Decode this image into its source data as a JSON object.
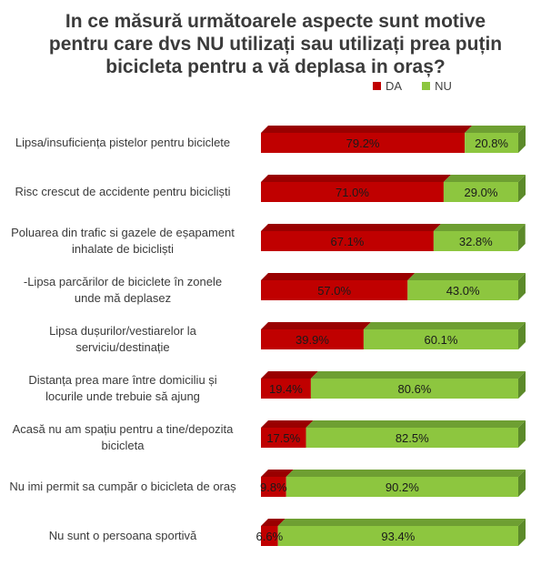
{
  "title_lines": [
    "In ce măsură următoarele aspecte sunt motive",
    "pentru care dvs NU utilizați sau utilizați prea puțin",
    "bicicleta pentru a vă deplasa in oraș?"
  ],
  "colors": {
    "da": "#c00000",
    "nu": "#8dc63f",
    "da_side": "#7a0000",
    "nu_side": "#5c8a2a",
    "nu_top": "#6e9f32",
    "da_top": "#990000"
  },
  "chart_data": {
    "type": "bar",
    "orientation": "horizontal",
    "stacked": true,
    "percent_stacked": true,
    "legend_position": "top-right",
    "title": "In ce măsură următoarele aspecte sunt motive pentru care dvs NU utilizați sau utilizați prea puțin bicicleta pentru a vă deplasa in oraș?",
    "categories": [
      [
        "Lipsa/insuficiența pistelor pentru biciclete"
      ],
      [
        "Risc crescut de accidente pentru bicicliști"
      ],
      [
        "Poluarea din trafic si gazele de eșapament",
        "inhalate de bicicliști"
      ],
      [
        "-Lipsa parcărilor de biciclete în  zonele",
        "unde mă deplasez"
      ],
      [
        "Lipsa dușurilor/vestiarelor la",
        "serviciu/destinație"
      ],
      [
        "Distanța prea mare între domiciliu și",
        "locurile unde trebuie să ajung"
      ],
      [
        "Acasă nu am spațiu pentru a  tine/depozita",
        "bicicleta"
      ],
      [
        "Nu imi permit sa cumpăr o bicicleta de oraș"
      ],
      [
        "Nu sunt o persoana sportivă"
      ]
    ],
    "series": [
      {
        "name": "DA",
        "values": [
          79.2,
          71.0,
          67.1,
          57.0,
          39.9,
          19.4,
          17.5,
          9.8,
          6.6
        ],
        "labels": [
          "79.2%",
          "71.0%",
          "67.1%",
          "57.0%",
          "39.9%",
          "19.4%",
          "17.5%",
          "9.8%",
          "6.6%"
        ]
      },
      {
        "name": "NU",
        "values": [
          20.8,
          29.0,
          32.8,
          43.0,
          60.1,
          80.6,
          82.5,
          90.2,
          93.4
        ],
        "labels": [
          "20.8%",
          "29.0%",
          "32.8%",
          "43.0%",
          "60.1%",
          "80.6%",
          "82.5%",
          "90.2%",
          "93.4%"
        ]
      }
    ]
  }
}
